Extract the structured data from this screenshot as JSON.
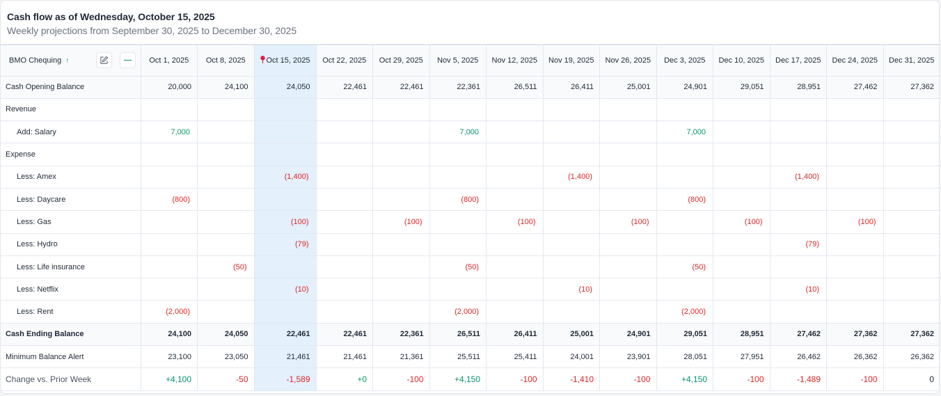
{
  "header": {
    "title": "Cash flow as of Wednesday, October 15, 2025",
    "subtitle": "Weekly projections from September 30, 2025 to December 30, 2025"
  },
  "table": {
    "account_label": "BMO Chequing",
    "sort_icon": "arrow-up-icon",
    "edit_icon": "edit-icon",
    "collapse_icon": "minus-icon",
    "current_week_index": 2,
    "current_week_icon": "pin-icon",
    "columns": [
      "Oct 1, 2025",
      "Oct 8, 2025",
      "Oct 15, 2025",
      "Oct 22, 2025",
      "Oct 29, 2025",
      "Nov 5, 2025",
      "Nov 12, 2025",
      "Nov 19, 2025",
      "Nov 26, 2025",
      "Dec 3, 2025",
      "Dec 10, 2025",
      "Dec 17, 2025",
      "Dec 24, 2025",
      "Dec 31, 2025"
    ],
    "rows": [
      {
        "label": "Cash Opening Balance",
        "kind": "grey",
        "values": [
          "20,000",
          "24,100",
          "24,050",
          "22,461",
          "22,461",
          "22,361",
          "26,511",
          "26,411",
          "25,001",
          "24,901",
          "29,051",
          "28,951",
          "27,462",
          "27,362"
        ]
      },
      {
        "label": "Revenue",
        "kind": "section",
        "values": [
          "",
          "",
          "",
          "",
          "",
          "",
          "",
          "",
          "",
          "",
          "",
          "",
          "",
          ""
        ]
      },
      {
        "label": "Add: Salary",
        "kind": "pos",
        "values": [
          "7,000",
          "",
          "",
          "",
          "",
          "7,000",
          "",
          "",
          "",
          "7,000",
          "",
          "",
          "",
          ""
        ]
      },
      {
        "label": "Expense",
        "kind": "section",
        "values": [
          "",
          "",
          "",
          "",
          "",
          "",
          "",
          "",
          "",
          "",
          "",
          "",
          "",
          ""
        ]
      },
      {
        "label": "Less: Amex",
        "kind": "neg",
        "values": [
          "",
          "",
          "(1,400)",
          "",
          "",
          "",
          "",
          "(1,400)",
          "",
          "",
          "",
          "(1,400)",
          "",
          ""
        ]
      },
      {
        "label": "Less: Daycare",
        "kind": "neg",
        "values": [
          "(800)",
          "",
          "",
          "",
          "",
          "(800)",
          "",
          "",
          "",
          "(800)",
          "",
          "",
          "",
          ""
        ]
      },
      {
        "label": "Less: Gas",
        "kind": "neg",
        "values": [
          "",
          "",
          "(100)",
          "",
          "(100)",
          "",
          "(100)",
          "",
          "(100)",
          "",
          "(100)",
          "",
          "(100)",
          ""
        ]
      },
      {
        "label": "Less: Hydro",
        "kind": "neg",
        "values": [
          "",
          "",
          "(79)",
          "",
          "",
          "",
          "",
          "",
          "",
          "",
          "",
          "(79)",
          "",
          ""
        ]
      },
      {
        "label": "Less: Life insurance",
        "kind": "neg",
        "values": [
          "",
          "(50)",
          "",
          "",
          "",
          "(50)",
          "",
          "",
          "",
          "(50)",
          "",
          "",
          "",
          ""
        ]
      },
      {
        "label": "Less: Netflix",
        "kind": "neg",
        "values": [
          "",
          "",
          "(10)",
          "",
          "",
          "",
          "",
          "(10)",
          "",
          "",
          "",
          "(10)",
          "",
          ""
        ]
      },
      {
        "label": "Less: Rent",
        "kind": "neg",
        "values": [
          "(2,000)",
          "",
          "",
          "",
          "",
          "(2,000)",
          "",
          "",
          "",
          "(2,000)",
          "",
          "",
          "",
          ""
        ]
      },
      {
        "label": "Cash Ending Balance",
        "kind": "bold",
        "values": [
          "24,100",
          "24,050",
          "22,461",
          "22,461",
          "22,361",
          "26,511",
          "26,411",
          "25,001",
          "24,901",
          "29,051",
          "28,951",
          "27,462",
          "27,362",
          "27,362"
        ]
      },
      {
        "label": "Minimum Balance Alert",
        "kind": "plain",
        "values": [
          "23,100",
          "23,050",
          "21,461",
          "21,461",
          "21,361",
          "25,511",
          "25,411",
          "24,001",
          "23,901",
          "28,051",
          "27,951",
          "26,462",
          "26,362",
          "26,362"
        ]
      },
      {
        "label": "Change vs. Prior Week",
        "kind": "change",
        "values": [
          "+4,100",
          "-50",
          "-1,589",
          "+0",
          "-100",
          "+4,150",
          "-100",
          "-1,410",
          "-100",
          "+4,150",
          "-100",
          "-1,489",
          "-100",
          "0"
        ]
      }
    ]
  },
  "colors": {
    "positive": "#059669",
    "negative": "#dc2626",
    "current_week_bg": "#e4f0fc",
    "pin": "#e11d48"
  }
}
